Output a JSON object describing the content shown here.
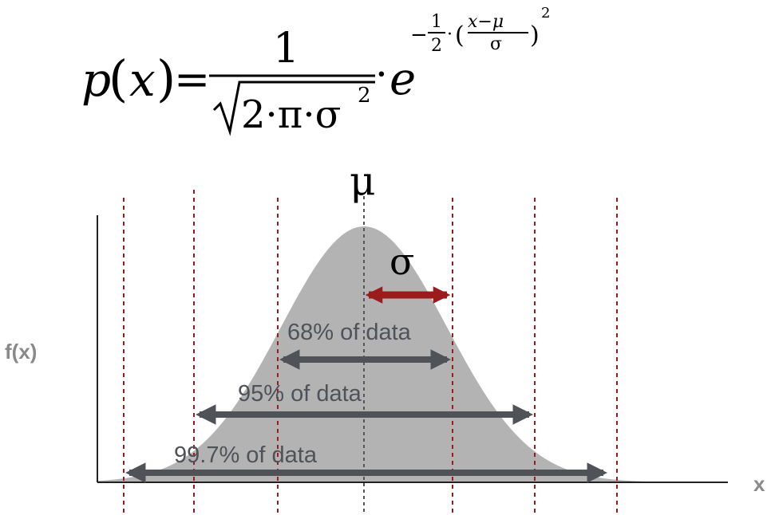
{
  "formula": {
    "lhs_func": "p",
    "lhs_var": "x",
    "numerator": "1",
    "sqrt_body": "2·π·σ",
    "sqrt_exp": "2",
    "dot": "·",
    "base": "e",
    "exp_sign": "−",
    "exp_half_num": "1",
    "exp_half_den": "2",
    "exp_dot": "·",
    "exp_frac_num": "x−μ",
    "exp_frac_den": "σ",
    "exp_power": "2"
  },
  "labels": {
    "mu": "μ",
    "sigma": "σ",
    "y_axis": "f(x)",
    "x_axis": "x",
    "band_68": "68% of data",
    "band_95": "95% of data",
    "band_997": "99.7% of data"
  },
  "colors": {
    "curve_fill": "#b3b3b3",
    "guide_line": "#9b1c1c",
    "sigma_arrow": "#9b1c1c",
    "band_arrow": "#4f5358",
    "band_text": "#4f5358",
    "axis_label": "#8a8a8a"
  }
}
